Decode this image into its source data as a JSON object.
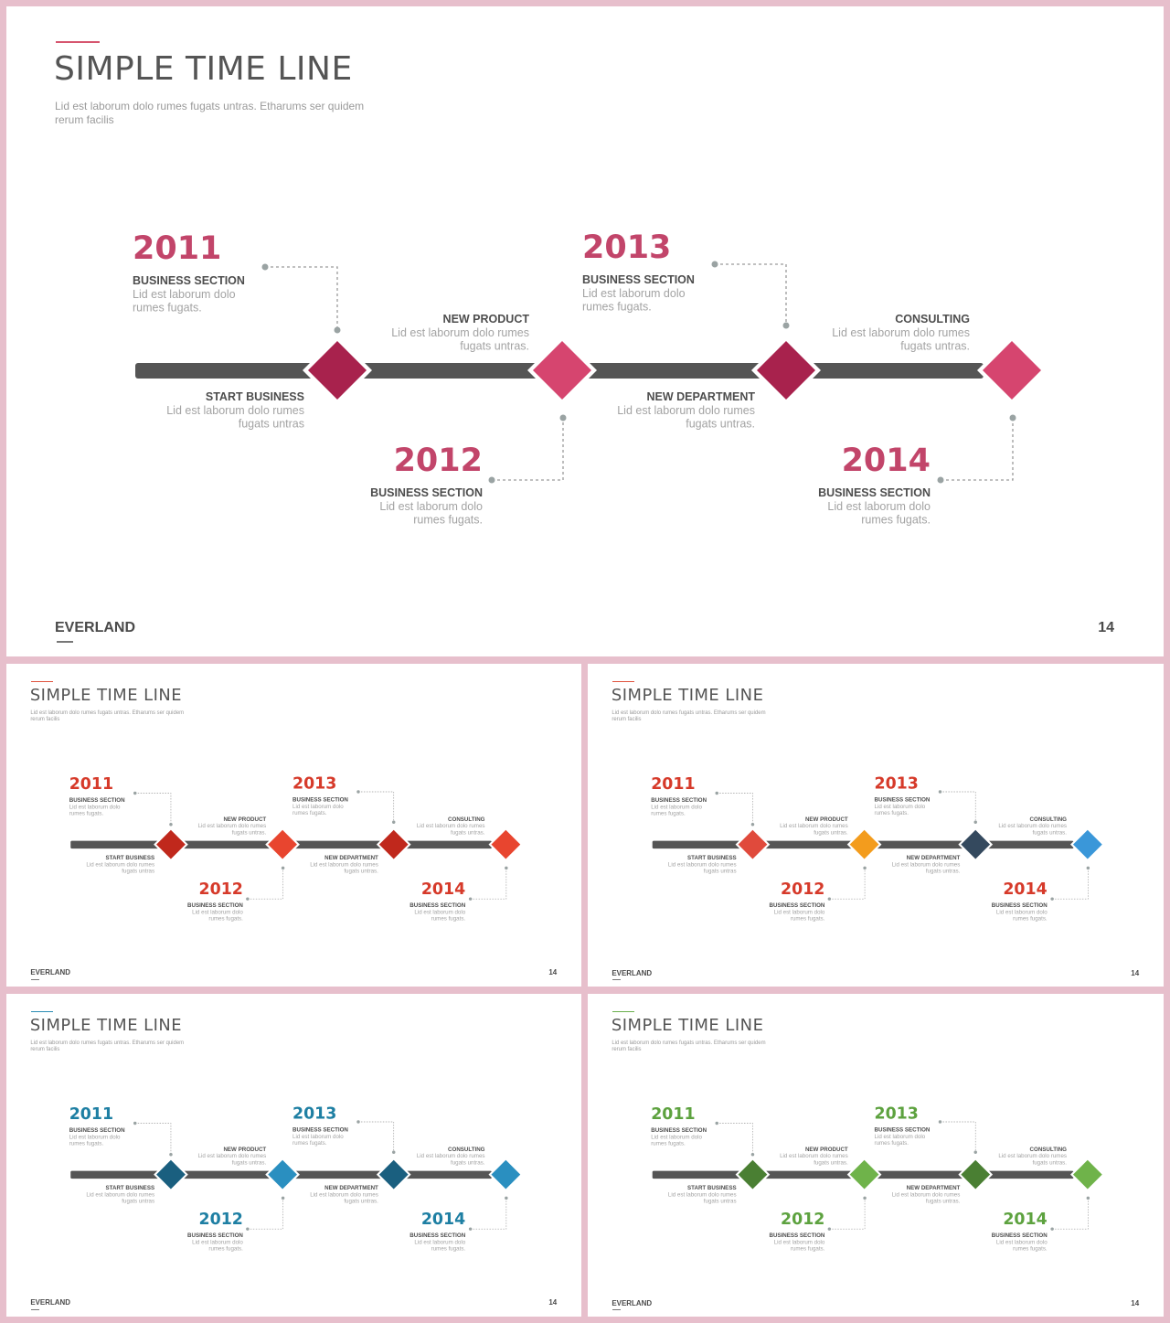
{
  "slides": [
    {
      "title": "SIMPLE TIME LINE",
      "subtitle": "Lid est laborum dolo rumes fugats untras. Etharums ser quidem\nrerum facilis",
      "brand": "EVERLAND",
      "page_number": "14",
      "theme": {
        "accent": "#d6566f",
        "year": "#c2456a",
        "diamonds": [
          "#a8224d",
          "#d6456f",
          "#a8224d",
          "#d6456f"
        ]
      },
      "top_events": [
        {
          "year": "2011",
          "heading": "BUSINESS SECTION",
          "text": "Lid est laborum dolo\nrumes fugats."
        },
        {
          "year": "2013",
          "heading": "BUSINESS SECTION",
          "text": "Lid est laborum dolo\nrumes fugats."
        }
      ],
      "bottom_events": [
        {
          "year": "2012",
          "heading": "BUSINESS SECTION",
          "text": "Lid est laborum dolo\nrumes fugats."
        },
        {
          "year": "2014",
          "heading": "BUSINESS SECTION",
          "text": "Lid est laborum dolo\nrumes fugats."
        }
      ],
      "upper_labels": [
        {
          "heading": "NEW PRODUCT",
          "text": "Lid est laborum dolo rumes\nfugats untras."
        },
        {
          "heading": "CONSULTING",
          "text": "Lid est laborum dolo rumes\nfugats untras."
        }
      ],
      "lower_labels": [
        {
          "heading": "START BUSINESS",
          "text": "Lid est laborum dolo rumes\nfugats untras"
        },
        {
          "heading": "NEW DEPARTMENT",
          "text": "Lid est laborum dolo rumes\nfugats untras."
        }
      ]
    },
    {
      "title": "SIMPLE TIME LINE",
      "subtitle": "Lid est laborum dolo rumes fugats untras. Etharums ser quidem\nrerum facilis",
      "brand": "EVERLAND",
      "page_number": "14",
      "theme": {
        "accent": "#e0523e",
        "year": "#d63a2a",
        "diamonds": [
          "#c0281c",
          "#e8452f",
          "#c0281c",
          "#e8452f"
        ]
      },
      "top_events": [
        {
          "year": "2011",
          "heading": "BUSINESS SECTION",
          "text": "Lid est laborum dolo\nrumes fugats."
        },
        {
          "year": "2013",
          "heading": "BUSINESS SECTION",
          "text": "Lid est laborum dolo\nrumes fugats."
        }
      ],
      "bottom_events": [
        {
          "year": "2012",
          "heading": "BUSINESS SECTION",
          "text": "Lid est laborum dolo\nrumes fugats."
        },
        {
          "year": "2014",
          "heading": "BUSINESS SECTION",
          "text": "Lid est laborum dolo\nrumes fugats."
        }
      ],
      "upper_labels": [
        {
          "heading": "NEW PRODUCT",
          "text": "Lid est laborum dolo rumes\nfugats untras."
        },
        {
          "heading": "CONSULTING",
          "text": "Lid est laborum dolo rumes\nfugats untras."
        }
      ],
      "lower_labels": [
        {
          "heading": "START BUSINESS",
          "text": "Lid est laborum dolo rumes\nfugats untras"
        },
        {
          "heading": "NEW DEPARTMENT",
          "text": "Lid est laborum dolo rumes\nfugats untras."
        }
      ]
    },
    {
      "title": "SIMPLE TIME LINE",
      "subtitle": "Lid est laborum dolo rumes fugats untras. Etharums ser quidem\nrerum facilis",
      "brand": "EVERLAND",
      "page_number": "14",
      "theme": {
        "accent": "#e0523e",
        "year": "#d63a2a",
        "diamonds": [
          "#e04a3c",
          "#f39c1d",
          "#34495e",
          "#3a97d9"
        ]
      },
      "top_events": [
        {
          "year": "2011",
          "heading": "BUSINESS SECTION",
          "text": "Lid est laborum dolo\nrumes fugats."
        },
        {
          "year": "2013",
          "heading": "BUSINESS SECTION",
          "text": "Lid est laborum dolo\nrumes fugats."
        }
      ],
      "bottom_events": [
        {
          "year": "2012",
          "heading": "BUSINESS SECTION",
          "text": "Lid est laborum dolo\nrumes fugats."
        },
        {
          "year": "2014",
          "heading": "BUSINESS SECTION",
          "text": "Lid est laborum dolo\nrumes fugats."
        }
      ],
      "upper_labels": [
        {
          "heading": "NEW PRODUCT",
          "text": "Lid est laborum dolo rumes\nfugats untras."
        },
        {
          "heading": "CONSULTING",
          "text": "Lid est laborum dolo rumes\nfugats untras."
        }
      ],
      "lower_labels": [
        {
          "heading": "START BUSINESS",
          "text": "Lid est laborum dolo rumes\nfugats untras"
        },
        {
          "heading": "NEW DEPARTMENT",
          "text": "Lid est laborum dolo rumes\nfugats untras."
        }
      ]
    },
    {
      "title": "SIMPLE TIME LINE",
      "subtitle": "Lid est laborum dolo rumes fugats untras. Etharums ser quidem\nrerum facilis",
      "brand": "EVERLAND",
      "page_number": "14",
      "theme": {
        "accent": "#2a8cb5",
        "year": "#1e7fa3",
        "diamonds": [
          "#1a5f7f",
          "#2a8fc0",
          "#1a5f7f",
          "#2a8fc0"
        ]
      },
      "top_events": [
        {
          "year": "2011",
          "heading": "BUSINESS SECTION",
          "text": "Lid est laborum dolo\nrumes fugats."
        },
        {
          "year": "2013",
          "heading": "BUSINESS SECTION",
          "text": "Lid est laborum dolo\nrumes fugats."
        }
      ],
      "bottom_events": [
        {
          "year": "2012",
          "heading": "BUSINESS SECTION",
          "text": "Lid est laborum dolo\nrumes fugats."
        },
        {
          "year": "2014",
          "heading": "BUSINESS SECTION",
          "text": "Lid est laborum dolo\nrumes fugats."
        }
      ],
      "upper_labels": [
        {
          "heading": "NEW PRODUCT",
          "text": "Lid est laborum dolo rumes\nfugats untras."
        },
        {
          "heading": "CONSULTING",
          "text": "Lid est laborum dolo rumes\nfugats untras."
        }
      ],
      "lower_labels": [
        {
          "heading": "START BUSINESS",
          "text": "Lid est laborum dolo rumes\nfugats untras"
        },
        {
          "heading": "NEW DEPARTMENT",
          "text": "Lid est laborum dolo rumes\nfugats untras."
        }
      ]
    },
    {
      "title": "SIMPLE TIME LINE",
      "subtitle": "Lid est laborum dolo rumes fugats untras. Etharums ser quidem\nrerum facilis",
      "brand": "EVERLAND",
      "page_number": "14",
      "theme": {
        "accent": "#6ab04c",
        "year": "#5da23f",
        "diamonds": [
          "#4a7f33",
          "#6fb34a",
          "#4a7f33",
          "#6fb34a"
        ]
      },
      "top_events": [
        {
          "year": "2011",
          "heading": "BUSINESS SECTION",
          "text": "Lid est laborum dolo\nrumes fugats."
        },
        {
          "year": "2013",
          "heading": "BUSINESS SECTION",
          "text": "Lid est laborum dolo\nrumes fugats."
        }
      ],
      "bottom_events": [
        {
          "year": "2012",
          "heading": "BUSINESS SECTION",
          "text": "Lid est laborum dolo\nrumes fugats."
        },
        {
          "year": "2014",
          "heading": "BUSINESS SECTION",
          "text": "Lid est laborum dolo\nrumes fugats."
        }
      ],
      "upper_labels": [
        {
          "heading": "NEW PRODUCT",
          "text": "Lid est laborum dolo rumes\nfugats untras."
        },
        {
          "heading": "CONSULTING",
          "text": "Lid est laborum dolo rumes\nfugats untras."
        }
      ],
      "lower_labels": [
        {
          "heading": "START BUSINESS",
          "text": "Lid est laborum dolo rumes\nfugats untras"
        },
        {
          "heading": "NEW DEPARTMENT",
          "text": "Lid est laborum dolo rumes\nfugats untras."
        }
      ]
    }
  ]
}
